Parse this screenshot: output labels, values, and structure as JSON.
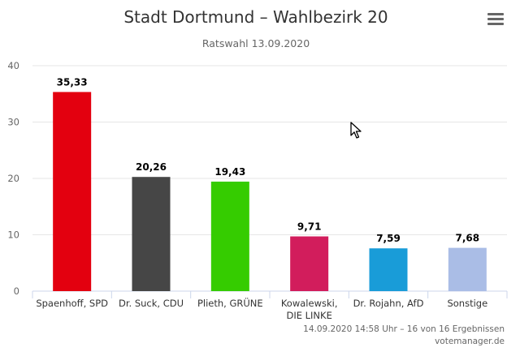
{
  "title": "Stadt Dortmund – Wahlbezirk 20",
  "subtitle": "Ratswahl 13.09.2020",
  "menu_icon": "hamburger-menu-icon",
  "chart_data": {
    "type": "bar",
    "categories": [
      "Spaenhoff, SPD",
      "Dr. Suck, CDU",
      "Plieth, GRÜNE",
      "Kowalewski, DIE LINKE",
      "Dr. Rojahn, AfD",
      "Sonstige"
    ],
    "category_lines": [
      [
        "Spaenhoff, SPD"
      ],
      [
        "Dr. Suck, CDU"
      ],
      [
        "Plieth, GRÜNE"
      ],
      [
        "Kowalewski,",
        "DIE LINKE"
      ],
      [
        "Dr. Rojahn, AfD"
      ],
      [
        "Sonstige"
      ]
    ],
    "values": [
      35.33,
      20.26,
      19.43,
      9.71,
      7.59,
      7.68
    ],
    "value_labels": [
      "35,33",
      "20,26",
      "19,43",
      "9,71",
      "7,59",
      "7,68"
    ],
    "colors": [
      "#e3000f",
      "#464646",
      "#35cc00",
      "#d21d5c",
      "#199cd8",
      "#aabde6"
    ],
    "yticks": [
      0,
      10,
      20,
      30,
      40
    ],
    "ylim": [
      0,
      40
    ],
    "grid": true,
    "legend": false
  },
  "credits": {
    "line1": "14.09.2020 14:58 Uhr – 16 von 16 Ergebnissen",
    "line2": "votemanager.de"
  }
}
